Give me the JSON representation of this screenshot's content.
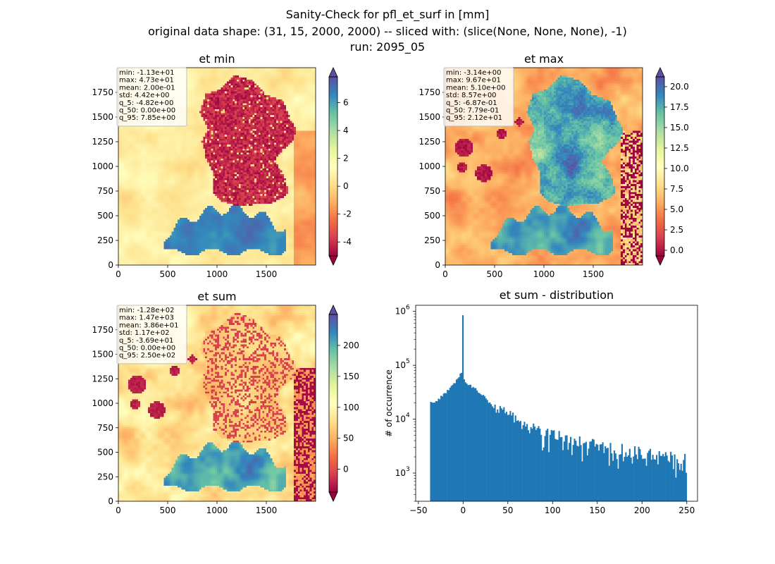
{
  "figure": {
    "title_lines": [
      "Sanity-Check for pfl_et_surf in [mm]",
      "original data shape: (31, 15, 2000, 2000) -- sliced with: (slice(None, None, None), -1)",
      "run: 2095_05"
    ]
  },
  "colors": {
    "spectral": [
      "#9e0142",
      "#d53e4f",
      "#f46d43",
      "#fdae61",
      "#fee08b",
      "#ffffbf",
      "#e6f598",
      "#abdda4",
      "#66c2a5",
      "#3288bd",
      "#5e4fa2"
    ],
    "hist_bar": "#1f77b4"
  },
  "chart_data": [
    {
      "type": "heatmap",
      "title": "et min",
      "x_ticks": [
        "0",
        "500",
        "1000",
        "1500"
      ],
      "y_ticks": [
        "0",
        "250",
        "500",
        "750",
        "1000",
        "1250",
        "1500",
        "1750"
      ],
      "xlim": [
        0,
        2000
      ],
      "ylim": [
        0,
        2000
      ],
      "colorbar": {
        "vmin": -5,
        "vmax": 7.85,
        "ticks": [
          "-4",
          "-2",
          "0",
          "2",
          "4",
          "6"
        ],
        "tick_values": [
          -4,
          -2,
          0,
          2,
          4,
          6
        ],
        "colormap": "Spectral",
        "extend": "both"
      },
      "stats": [
        "min: -1.13e+01",
        "max: 4.73e+01",
        "mean: 2.00e-01",
        "std: 4.42e+00",
        "q_5: -4.82e+00",
        "q_50: 0.00e+00",
        "q_95: 7.85e+00"
      ]
    },
    {
      "type": "heatmap",
      "title": "et max",
      "x_ticks": [
        "0",
        "500",
        "1000",
        "1500"
      ],
      "y_ticks": [
        "0",
        "250",
        "500",
        "750",
        "1000",
        "1250",
        "1500",
        "1750"
      ],
      "xlim": [
        0,
        2000
      ],
      "ylim": [
        0,
        2000
      ],
      "colorbar": {
        "vmin": -0.69,
        "vmax": 21.2,
        "ticks": [
          "0.0",
          "2.5",
          "5.0",
          "7.5",
          "10.0",
          "12.5",
          "15.0",
          "17.5",
          "20.0"
        ],
        "tick_values": [
          0,
          2.5,
          5,
          7.5,
          10,
          12.5,
          15,
          17.5,
          20
        ],
        "colormap": "Spectral",
        "extend": "both"
      },
      "stats": [
        "min: -3.14e+00",
        "max: 9.67e+01",
        "mean: 5.10e+00",
        "std: 8.57e+00",
        "q_5: -6.87e-01",
        "q_50: 7.79e-01",
        "q_95: 2.12e+01"
      ]
    },
    {
      "type": "heatmap",
      "title": "et sum",
      "x_ticks": [
        "0",
        "500",
        "1000",
        "1500"
      ],
      "y_ticks": [
        "0",
        "250",
        "500",
        "750",
        "1000",
        "1250",
        "1500",
        "1750"
      ],
      "xlim": [
        0,
        2000
      ],
      "ylim": [
        0,
        2000
      ],
      "colorbar": {
        "vmin": -36.9,
        "vmax": 250,
        "ticks": [
          "0",
          "50",
          "100",
          "150",
          "200"
        ],
        "tick_values": [
          0,
          50,
          100,
          150,
          200
        ],
        "colormap": "Spectral",
        "extend": "both"
      },
      "stats": [
        "min: -1.28e+02",
        "max: 1.47e+03",
        "mean: 3.86e+01",
        "std: 1.17e+02",
        "q_5: -3.69e+01",
        "q_50: 0.00e+00",
        "q_95: 2.50e+02"
      ]
    },
    {
      "type": "bar",
      "title": "et sum - distribution",
      "xlabel": "",
      "ylabel": "# of occurrence",
      "y_scale": "log",
      "xlim": [
        -53,
        262
      ],
      "ylim": [
        300,
        1300000
      ],
      "x_ticks": [
        "−50",
        "0",
        "50",
        "100",
        "150",
        "200",
        "250"
      ],
      "x_tick_values": [
        -50,
        0,
        50,
        100,
        150,
        200,
        250
      ],
      "y_ticks": [
        "10",
        "10",
        "10",
        "10"
      ],
      "y_tick_exponents": [
        "3",
        "4",
        "5",
        "6"
      ],
      "y_tick_values": [
        1000,
        10000,
        100000,
        1000000
      ],
      "bin_range": [
        -36.9,
        250
      ],
      "bin_count": 200,
      "peak": {
        "x": 0,
        "count": 850000
      },
      "profile": {
        "x": [
          -36.9,
          -30,
          -20,
          -10,
          -5,
          -1,
          1,
          5,
          10,
          20,
          30,
          40,
          50,
          60,
          80,
          100,
          120,
          140,
          160,
          180,
          200,
          220,
          240,
          250
        ],
        "count": [
          20000,
          22000,
          30000,
          45000,
          60000,
          80000,
          55000,
          45000,
          40000,
          30000,
          20000,
          16000,
          12000,
          9000,
          6500,
          5000,
          4200,
          3600,
          3000,
          2600,
          2300,
          2000,
          1900,
          1800
        ]
      }
    }
  ]
}
